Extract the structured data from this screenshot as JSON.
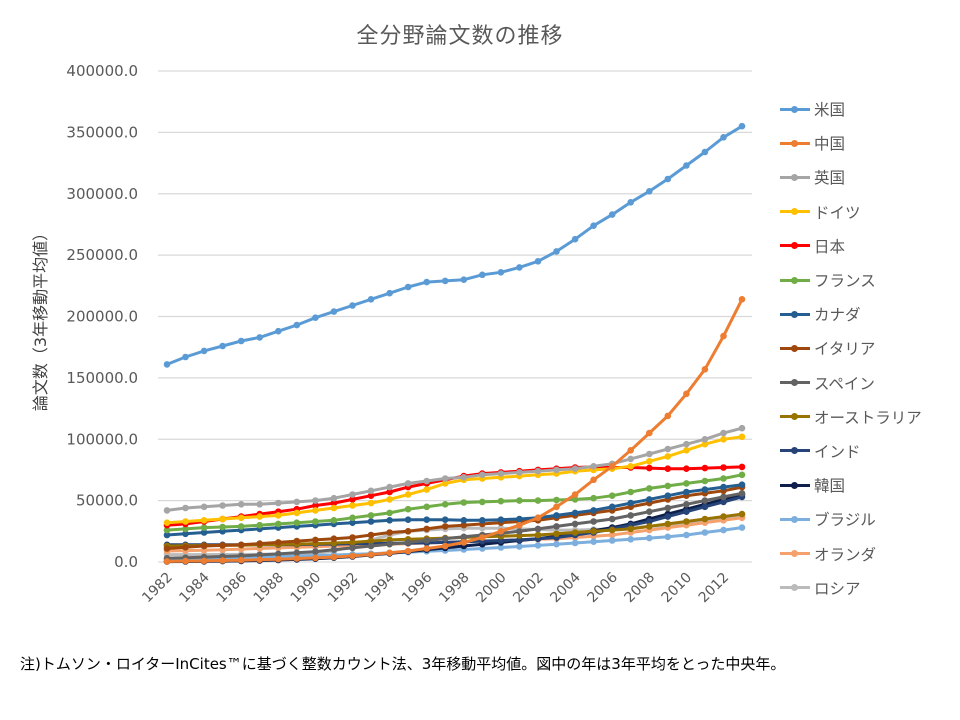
{
  "chart_data": {
    "type": "line",
    "title": "全分野論文数の推移",
    "xlabel": "",
    "ylabel": "論文数（3年移動平均値）",
    "ylim": [
      0,
      400000
    ],
    "yticks": [
      "0.0",
      "50000.0",
      "100000.0",
      "150000.0",
      "200000.0",
      "250000.0",
      "300000.0",
      "350000.0",
      "400000.0"
    ],
    "ytick_values": [
      0,
      50000,
      100000,
      150000,
      200000,
      250000,
      300000,
      350000,
      400000
    ],
    "x": [
      1982,
      1983,
      1984,
      1985,
      1986,
      1987,
      1988,
      1989,
      1990,
      1991,
      1992,
      1993,
      1994,
      1995,
      1996,
      1997,
      1998,
      1999,
      2000,
      2001,
      2002,
      2003,
      2004,
      2005,
      2006,
      2007,
      2008,
      2009,
      2010,
      2011,
      2012,
      2013
    ],
    "xtick_labels": [
      "1982",
      "1984",
      "1986",
      "1988",
      "1990",
      "1992",
      "1994",
      "1996",
      "1998",
      "2000",
      "2002",
      "2004",
      "2006",
      "2008",
      "2010",
      "2012"
    ],
    "grid": true,
    "legend_position": "right",
    "series": [
      {
        "name": "米国",
        "color": "#5B9BD5",
        "values": [
          161000,
          167000,
          172000,
          176000,
          180000,
          183000,
          188000,
          193000,
          199000,
          204000,
          209000,
          214000,
          219000,
          224000,
          228000,
          229000,
          230000,
          234000,
          236000,
          240000,
          245000,
          253000,
          263000,
          274000,
          283000,
          293000,
          302000,
          312000,
          323000,
          334000,
          346000,
          355000
        ]
      },
      {
        "name": "中国",
        "color": "#ED7D31",
        "values": [
          500,
          700,
          900,
          1200,
          1500,
          1900,
          2300,
          2800,
          3300,
          4000,
          5000,
          6000,
          7500,
          9000,
          11000,
          13000,
          16000,
          20000,
          25000,
          30000,
          36000,
          45000,
          55000,
          67000,
          78000,
          91000,
          105000,
          119000,
          137000,
          157000,
          184000,
          214000
        ]
      },
      {
        "name": "英国",
        "color": "#A5A5A5",
        "values": [
          42000,
          44000,
          45000,
          46000,
          47000,
          47000,
          48000,
          49000,
          50000,
          52000,
          55000,
          58000,
          61000,
          64000,
          66000,
          68000,
          69000,
          71000,
          72000,
          73000,
          74000,
          75000,
          76000,
          78000,
          80000,
          84000,
          88000,
          92000,
          96000,
          100000,
          105000,
          109000
        ]
      },
      {
        "name": "ドイツ",
        "color": "#FFC000",
        "values": [
          32000,
          33000,
          34000,
          35000,
          36000,
          37000,
          38000,
          40000,
          42000,
          44000,
          46000,
          48000,
          51000,
          55000,
          59000,
          64000,
          67000,
          68000,
          69000,
          70000,
          71000,
          72000,
          74000,
          75000,
          76000,
          78000,
          82000,
          86000,
          91000,
          96000,
          100000,
          102000
        ]
      },
      {
        "name": "日本",
        "color": "#FF0000",
        "values": [
          30000,
          31000,
          33000,
          35000,
          37000,
          39000,
          41000,
          43000,
          46000,
          48000,
          51000,
          54000,
          57000,
          61000,
          64000,
          67000,
          70000,
          72000,
          73000,
          74000,
          75000,
          76000,
          77000,
          77500,
          77000,
          77000,
          76500,
          76000,
          76000,
          76500,
          77000,
          77500
        ]
      },
      {
        "name": "フランス",
        "color": "#70AD47",
        "values": [
          26000,
          27000,
          28000,
          28500,
          29000,
          30000,
          31000,
          32000,
          33000,
          34000,
          36000,
          38000,
          40000,
          43000,
          45000,
          47000,
          48500,
          49000,
          49500,
          50000,
          50000,
          50500,
          51000,
          52000,
          54000,
          57000,
          60000,
          62000,
          64000,
          66000,
          68000,
          71000
        ]
      },
      {
        "name": "カナダ",
        "color": "#255E91",
        "values": [
          22000,
          23000,
          24000,
          25000,
          26000,
          27000,
          28000,
          29000,
          30000,
          31000,
          32000,
          33000,
          34000,
          34500,
          34500,
          34500,
          34000,
          34000,
          34500,
          35000,
          36000,
          38000,
          40000,
          42000,
          45000,
          48000,
          51000,
          54000,
          57000,
          59000,
          61000,
          63000
        ]
      },
      {
        "name": "イタリア",
        "color": "#9E480E",
        "values": [
          11000,
          12000,
          13000,
          13500,
          14000,
          15000,
          16000,
          17000,
          18000,
          19000,
          20000,
          22000,
          24000,
          25000,
          27000,
          29000,
          30000,
          31000,
          32000,
          33000,
          34000,
          36000,
          38000,
          40000,
          42000,
          45000,
          48000,
          51000,
          54000,
          56000,
          58000,
          61000
        ]
      },
      {
        "name": "スペイン",
        "color": "#636363",
        "values": [
          3000,
          3500,
          4000,
          4500,
          5000,
          5800,
          6600,
          7500,
          8500,
          10000,
          11500,
          13000,
          14500,
          16000,
          17500,
          19000,
          20500,
          22000,
          23500,
          25000,
          27000,
          29000,
          31000,
          33000,
          35000,
          38000,
          41000,
          44000,
          47000,
          50000,
          53000,
          56000
        ]
      },
      {
        "name": "オーストラリア",
        "color": "#997300",
        "values": [
          13000,
          13200,
          13400,
          13500,
          13700,
          14000,
          14300,
          14600,
          15000,
          15500,
          16000,
          17000,
          18000,
          18500,
          19000,
          19500,
          20000,
          20500,
          21000,
          21500,
          22000,
          23000,
          24000,
          25000,
          26000,
          27000,
          29000,
          31000,
          33000,
          35000,
          37000,
          39000
        ]
      },
      {
        "name": "インド",
        "color": "#264478",
        "values": [
          14000,
          14000,
          14000,
          14000,
          14000,
          14000,
          14000,
          14200,
          14400,
          14600,
          14800,
          15000,
          15200,
          15400,
          15600,
          16000,
          16500,
          17000,
          17500,
          18000,
          19000,
          20000,
          22000,
          24000,
          27000,
          30000,
          33000,
          37000,
          41000,
          45000,
          49000,
          53000
        ]
      },
      {
        "name": "韓国",
        "color": "#0F1F4B",
        "values": [
          300,
          400,
          500,
          700,
          900,
          1200,
          1600,
          2100,
          2700,
          3500,
          4500,
          5700,
          7000,
          8500,
          10000,
          11500,
          13000,
          14500,
          16000,
          17500,
          19000,
          21000,
          23000,
          25500,
          28000,
          31000,
          35000,
          39000,
          43000,
          47000,
          51000,
          55000
        ]
      },
      {
        "name": "ブラジル",
        "color": "#7CAFDD",
        "values": [
          2500,
          2800,
          3100,
          3400,
          3700,
          4000,
          4400,
          4800,
          5200,
          5700,
          6200,
          6800,
          7400,
          8000,
          8700,
          9400,
          10200,
          11000,
          11800,
          12600,
          13500,
          14500,
          15500,
          16500,
          17500,
          18500,
          19500,
          20500,
          22000,
          24000,
          26000,
          28000
        ]
      },
      {
        "name": "オランダ",
        "color": "#F4A16D",
        "values": [
          9000,
          9300,
          9600,
          10000,
          10500,
          11000,
          11500,
          12000,
          12500,
          13000,
          13500,
          14000,
          14500,
          15000,
          15500,
          16000,
          16500,
          17000,
          17500,
          18000,
          18500,
          19000,
          20000,
          21000,
          22000,
          24000,
          26000,
          28000,
          30000,
          32000,
          34000,
          36000
        ]
      },
      {
        "name": "ロシア",
        "color": "#BBBBBB",
        "values": [
          6000,
          6000,
          6000,
          6100,
          6200,
          6300,
          6400,
          6500,
          7000,
          9000,
          13000,
          18000,
          22000,
          25000,
          26000,
          27000,
          27500,
          27500,
          27500,
          27000,
          26500,
          26000,
          26000,
          26500,
          27000,
          28000,
          29000,
          30000,
          31000,
          33000,
          35000,
          37000
        ]
      }
    ]
  },
  "note": "注)トムソン・ロイターInCites™に基づく整数カウント法、3年移動平均値。図中の年は3年平均をとった中央年。"
}
